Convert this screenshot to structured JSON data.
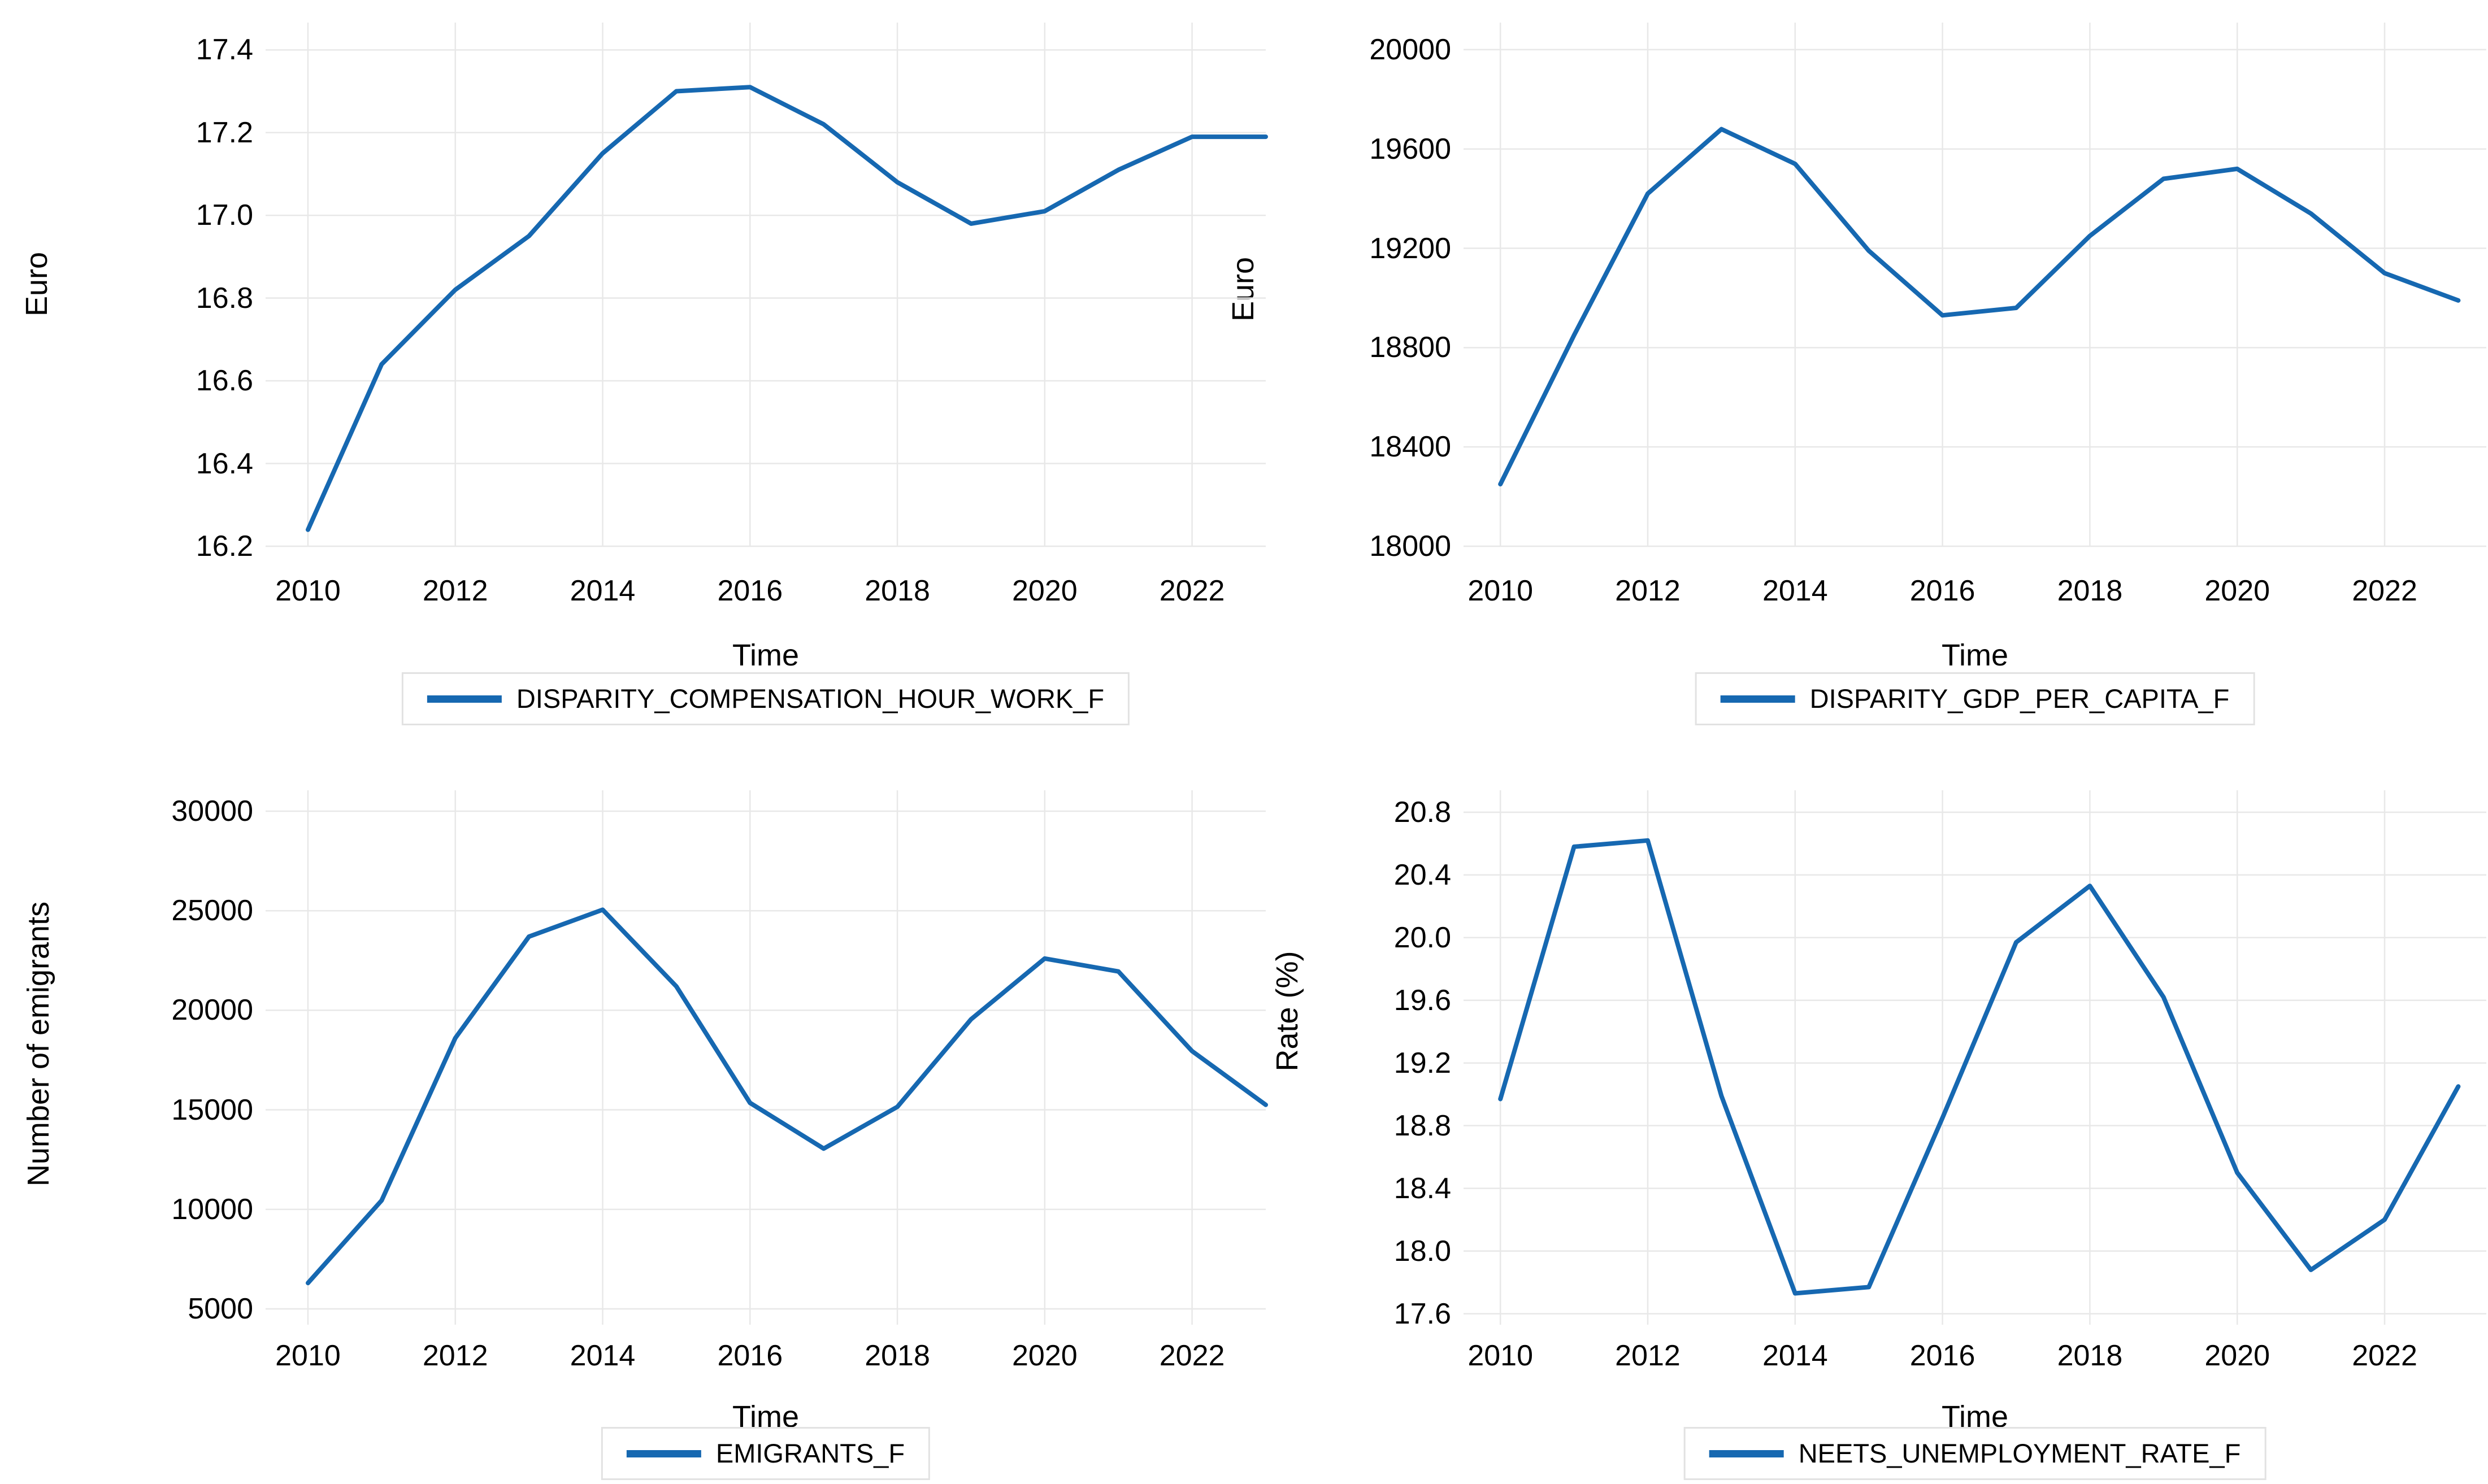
{
  "figure": {
    "background_color": "#FFFFFF",
    "line_color": "#1668B1",
    "grid_color": "#E8E8E8",
    "legend_border_color": "#E2E2E2",
    "text_color": "#000000",
    "grid_on": true,
    "legend_position": "below-x-axis"
  },
  "chart_data": [
    {
      "type": "line",
      "title": "",
      "legend_label": "DISPARITY_COMPENSATION_HOUR_WORK_F",
      "xlabel": "Time",
      "ylabel": "Euro",
      "x": [
        2010,
        2011,
        2012,
        2013,
        2014,
        2015,
        2016,
        2017,
        2018,
        2019,
        2020,
        2021,
        2022,
        2023
      ],
      "values": [
        16.24,
        16.64,
        16.82,
        16.95,
        17.15,
        17.3,
        17.31,
        17.22,
        17.08,
        16.98,
        17.01,
        17.11,
        17.19,
        17.19
      ],
      "ylim": [
        16.2,
        17.4
      ],
      "yticks": [
        16.2,
        16.4,
        16.6,
        16.8,
        17.0,
        17.2,
        17.4
      ],
      "ytick_labels": [
        "16.2",
        "16.4",
        "16.6",
        "16.8",
        "17.0",
        "17.2",
        "17.4"
      ],
      "xticks": [
        2010,
        2012,
        2014,
        2016,
        2018,
        2020,
        2022
      ],
      "xtick_labels": [
        "2010",
        "2012",
        "2014",
        "2016",
        "2018",
        "2020",
        "2022"
      ]
    },
    {
      "type": "line",
      "title": "",
      "legend_label": "DISPARITY_GDP_PER_CAPITA_F",
      "xlabel": "Time",
      "ylabel": "Euro",
      "x": [
        2010,
        2011,
        2012,
        2013,
        2014,
        2015,
        2016,
        2017,
        2018,
        2019,
        2020,
        2021,
        2022,
        2023
      ],
      "values": [
        18250,
        18850,
        19420,
        19680,
        19540,
        19190,
        18930,
        18960,
        19250,
        19480,
        19520,
        19340,
        19100,
        18990
      ],
      "ylim": [
        18000,
        20000
      ],
      "yticks": [
        18000,
        18400,
        18800,
        19200,
        19600,
        20000
      ],
      "ytick_labels": [
        "18000",
        "18400",
        "18800",
        "19200",
        "19600",
        "20000"
      ],
      "xticks": [
        2010,
        2012,
        2014,
        2016,
        2018,
        2020,
        2022
      ],
      "xtick_labels": [
        "2010",
        "2012",
        "2014",
        "2016",
        "2018",
        "2020",
        "2022"
      ]
    },
    {
      "type": "line",
      "title": "",
      "legend_label": "EMIGRANTS_F",
      "xlabel": "Time",
      "ylabel": "Number of emigrants",
      "x": [
        2010,
        2011,
        2012,
        2013,
        2014,
        2015,
        2016,
        2017,
        2018,
        2019,
        2020,
        2021,
        2022,
        2023
      ],
      "values": [
        6300,
        10450,
        18600,
        23700,
        25050,
        21200,
        15350,
        13050,
        15150,
        19550,
        22600,
        21950,
        17950,
        15250
      ],
      "ylim": [
        5000,
        30000
      ],
      "yticks": [
        5000,
        10000,
        15000,
        20000,
        25000,
        30000
      ],
      "ytick_labels": [
        "5000",
        "10000",
        "15000",
        "20000",
        "25000",
        "30000"
      ],
      "xticks": [
        2010,
        2012,
        2014,
        2016,
        2018,
        2020,
        2022
      ],
      "xtick_labels": [
        "2010",
        "2012",
        "2014",
        "2016",
        "2018",
        "2020",
        "2022"
      ]
    },
    {
      "type": "line",
      "title": "",
      "legend_label": "NEETS_UNEMPLOYMENT_RATE_F",
      "xlabel": "Time",
      "ylabel": "Rate (%)",
      "x": [
        2010,
        2011,
        2012,
        2013,
        2014,
        2015,
        2016,
        2017,
        2018,
        2019,
        2020,
        2021,
        2022,
        2023
      ],
      "values": [
        18.97,
        20.58,
        20.62,
        18.99,
        17.73,
        17.77,
        18.85,
        19.97,
        20.33,
        19.62,
        18.5,
        17.88,
        18.2,
        19.05
      ],
      "ylim": [
        17.6,
        20.8
      ],
      "yticks": [
        17.6,
        18.0,
        18.4,
        18.8,
        19.2,
        19.6,
        20.0,
        20.4,
        20.8
      ],
      "ytick_labels": [
        "17.6",
        "18.0",
        "18.4",
        "18.8",
        "19.2",
        "19.6",
        "20.0",
        "20.4",
        "20.8"
      ],
      "xticks": [
        2010,
        2012,
        2014,
        2016,
        2018,
        2020,
        2022
      ],
      "xtick_labels": [
        "2010",
        "2012",
        "2014",
        "2016",
        "2018",
        "2020",
        "2022"
      ]
    }
  ]
}
